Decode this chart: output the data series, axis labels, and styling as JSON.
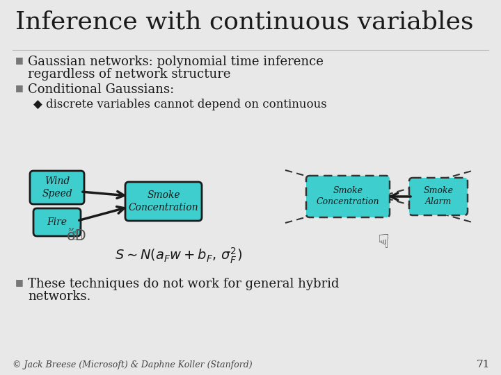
{
  "title": "Inference with continuous variables",
  "bg_color": "#e8e8e8",
  "title_color": "#1a1a1a",
  "bullet1_line1": "Gaussian networks: polynomial time inference",
  "bullet1_line2": "regardless of network structure",
  "bullet2": "Conditional Gaussians:",
  "sub_bullet": "◆ discrete variables cannot depend on continuous",
  "bullet3_line1": "These techniques do not work for general hybrid",
  "bullet3_line2": "networks.",
  "footer": "© Jack Breese (Microsoft) & Daphne Koller (Stanford)",
  "page_num": "71",
  "node_color": "#3ecece",
  "node_border_solid": "#1a1a1a",
  "node_border_dashed": "#333333",
  "node_text_color": "#1a1a1a",
  "arrow_color": "#1a1a1a",
  "dashed_color": "#333333",
  "bullet_color": "#777777"
}
